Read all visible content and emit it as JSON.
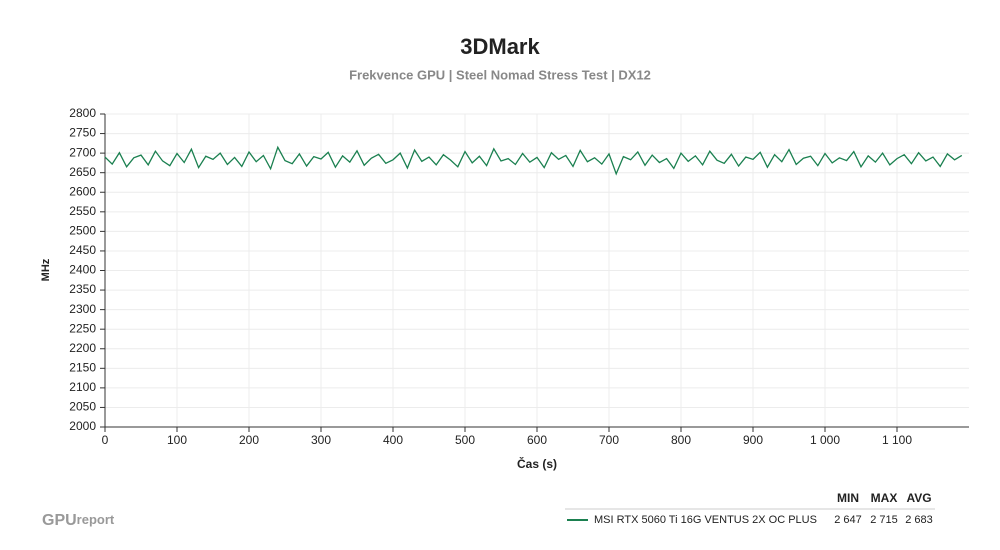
{
  "chart_data": {
    "type": "line",
    "title": "3DMark",
    "subtitle": "Frekvence GPU | Steel Nomad Stress Test | DX12",
    "x_label": "Čas (s)",
    "y_label": "MHz",
    "x": [
      0,
      10,
      20,
      30,
      40,
      50,
      60,
      70,
      80,
      90,
      100,
      110,
      120,
      130,
      140,
      150,
      160,
      170,
      180,
      190,
      200,
      210,
      220,
      230,
      240,
      250,
      260,
      270,
      280,
      290,
      300,
      310,
      320,
      330,
      340,
      350,
      360,
      370,
      380,
      390,
      400,
      410,
      420,
      430,
      440,
      450,
      460,
      470,
      480,
      490,
      500,
      510,
      520,
      530,
      540,
      550,
      560,
      570,
      580,
      590,
      600,
      610,
      620,
      630,
      640,
      650,
      660,
      670,
      680,
      690,
      700,
      710,
      720,
      730,
      740,
      750,
      760,
      770,
      780,
      790,
      800,
      810,
      820,
      830,
      840,
      850,
      860,
      870,
      880,
      890,
      900,
      910,
      920,
      930,
      940,
      950,
      960,
      970,
      980,
      990,
      1000,
      1010,
      1020,
      1030,
      1040,
      1050,
      1060,
      1070,
      1080,
      1090,
      1100,
      1110,
      1120,
      1130,
      1140,
      1150,
      1160,
      1170,
      1180,
      1190
    ],
    "series": [
      {
        "name": "MSI RTX 5060 Ti 16G VENTUS 2X OC PLUS",
        "color": "#1b8050",
        "values": [
          2690,
          2672,
          2701,
          2665,
          2688,
          2695,
          2670,
          2705,
          2680,
          2668,
          2699,
          2676,
          2710,
          2663,
          2692,
          2684,
          2700,
          2671,
          2689,
          2666,
          2703,
          2678,
          2694,
          2660,
          2715,
          2681,
          2673,
          2698,
          2667,
          2691,
          2685,
          2702,
          2664,
          2693,
          2677,
          2706,
          2669,
          2687,
          2697,
          2674,
          2683,
          2700,
          2662,
          2708,
          2679,
          2690,
          2670,
          2696,
          2682,
          2665,
          2704,
          2675,
          2692,
          2668,
          2711,
          2680,
          2686,
          2671,
          2699,
          2677,
          2689,
          2663,
          2701,
          2684,
          2694,
          2666,
          2707,
          2678,
          2688,
          2672,
          2698,
          2647,
          2691,
          2683,
          2703,
          2669,
          2695,
          2676,
          2686,
          2661,
          2700,
          2679,
          2693,
          2670,
          2705,
          2682,
          2674,
          2697,
          2667,
          2690,
          2684,
          2702,
          2664,
          2696,
          2678,
          2709,
          2671,
          2687,
          2692,
          2668,
          2699,
          2675,
          2688,
          2681,
          2704,
          2665,
          2693,
          2677,
          2700,
          2670,
          2686,
          2696,
          2673,
          2701,
          2680,
          2690,
          2666,
          2698,
          2683,
          2694
        ],
        "stats": [
          {
            "value": 2647,
            "label": "2 647"
          },
          {
            "value": 2715,
            "label": "2 715"
          },
          {
            "value": 2683,
            "label": "2 683"
          }
        ]
      }
    ],
    "stats_header": [
      "MIN",
      "MAX",
      "AVG"
    ],
    "xlim": [
      0,
      1200
    ],
    "xticks": [
      0,
      100,
      200,
      300,
      400,
      500,
      600,
      700,
      800,
      900,
      {
        "value": 1000,
        "label": "1 000"
      },
      {
        "value": 1100,
        "label": "1 100"
      }
    ],
    "ylim": [
      2000,
      2800
    ],
    "yticks": [
      2000,
      2050,
      2100,
      2150,
      2200,
      2250,
      2300,
      2350,
      2400,
      2450,
      2500,
      2550,
      2600,
      2650,
      2700,
      2750,
      2800
    ],
    "grid": true,
    "brand": [
      "GPU",
      "report"
    ]
  }
}
